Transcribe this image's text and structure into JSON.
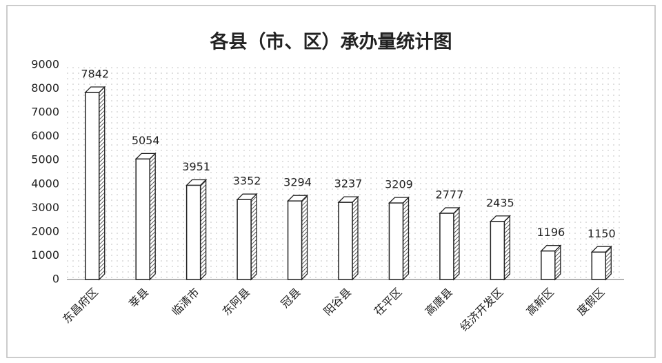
{
  "chart_data": {
    "type": "bar",
    "title": "各县（市、区）承办量统计图",
    "categories": [
      "东昌府区",
      "莘县",
      "临清市",
      "东阿县",
      "冠县",
      "阳谷县",
      "茌平区",
      "高唐县",
      "经济开发区",
      "高新区",
      "度假区"
    ],
    "values": [
      7842,
      5054,
      3951,
      3352,
      3294,
      3237,
      3209,
      2777,
      2435,
      1196,
      1150
    ],
    "color": "#ffffff",
    "ylim": [
      0,
      9000
    ],
    "yticks": [
      0,
      1000,
      2000,
      3000,
      4000,
      5000,
      6000,
      7000,
      8000,
      9000
    ],
    "grid": false
  }
}
